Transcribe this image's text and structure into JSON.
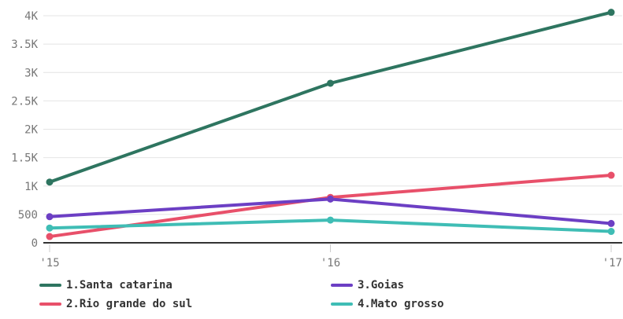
{
  "chart_data": {
    "type": "line",
    "x": [
      "'15",
      "'16",
      "'17"
    ],
    "y_ticks": [
      "0",
      "500",
      "1K",
      "1.5K",
      "2K",
      "2.5K",
      "3K",
      "3.5K",
      "4K"
    ],
    "ylim": [
      0,
      4000
    ],
    "grid": true,
    "legend_position": "bottom",
    "series": [
      {
        "name": "1.Santa catarina",
        "color": "#2e7560",
        "values": [
          1070,
          2810,
          4060
        ]
      },
      {
        "name": "2.Rio grande do sul",
        "color": "#e8506a",
        "values": [
          110,
          800,
          1190
        ]
      },
      {
        "name": "3.Goias",
        "color": "#6c3fc4",
        "values": [
          460,
          770,
          340
        ]
      },
      {
        "name": "4.Mato grosso",
        "color": "#3fbdb5",
        "values": [
          260,
          400,
          200
        ]
      }
    ]
  }
}
